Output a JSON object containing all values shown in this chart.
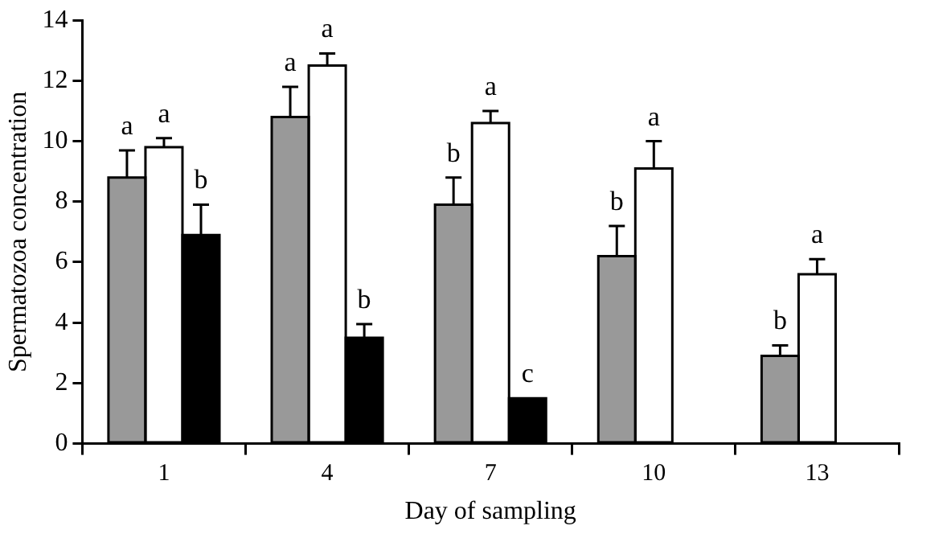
{
  "chart_data": {
    "type": "bar",
    "xlabel": "Day of sampling",
    "ylabel": "Spermatozoa concentration",
    "categories": [
      "1",
      "4",
      "7",
      "10",
      "13"
    ],
    "series": [
      {
        "color": "#999999",
        "values": [
          8.8,
          10.8,
          7.9,
          6.2,
          2.9
        ],
        "errors": [
          0.9,
          1.0,
          0.9,
          1.0,
          0.35
        ],
        "value_labels": [
          "a",
          "a",
          "b",
          "b",
          "b"
        ]
      },
      {
        "color": "#ffffff",
        "values": [
          9.8,
          12.5,
          10.6,
          9.1,
          5.6
        ],
        "errors": [
          0.3,
          0.4,
          0.4,
          0.9,
          0.5
        ],
        "value_labels": [
          "a",
          "a",
          "a",
          "a",
          "a"
        ]
      },
      {
        "color": "#000000",
        "values": [
          6.9,
          3.5,
          1.5,
          0,
          0
        ],
        "errors": [
          1.0,
          0.45,
          null,
          null,
          null
        ],
        "value_labels": [
          "b",
          "b",
          "c",
          null,
          null
        ]
      }
    ],
    "ylim": [
      0,
      14
    ],
    "yticks": [
      0,
      2,
      4,
      6,
      8,
      10,
      12,
      14
    ],
    "grid": false,
    "legend": false
  }
}
